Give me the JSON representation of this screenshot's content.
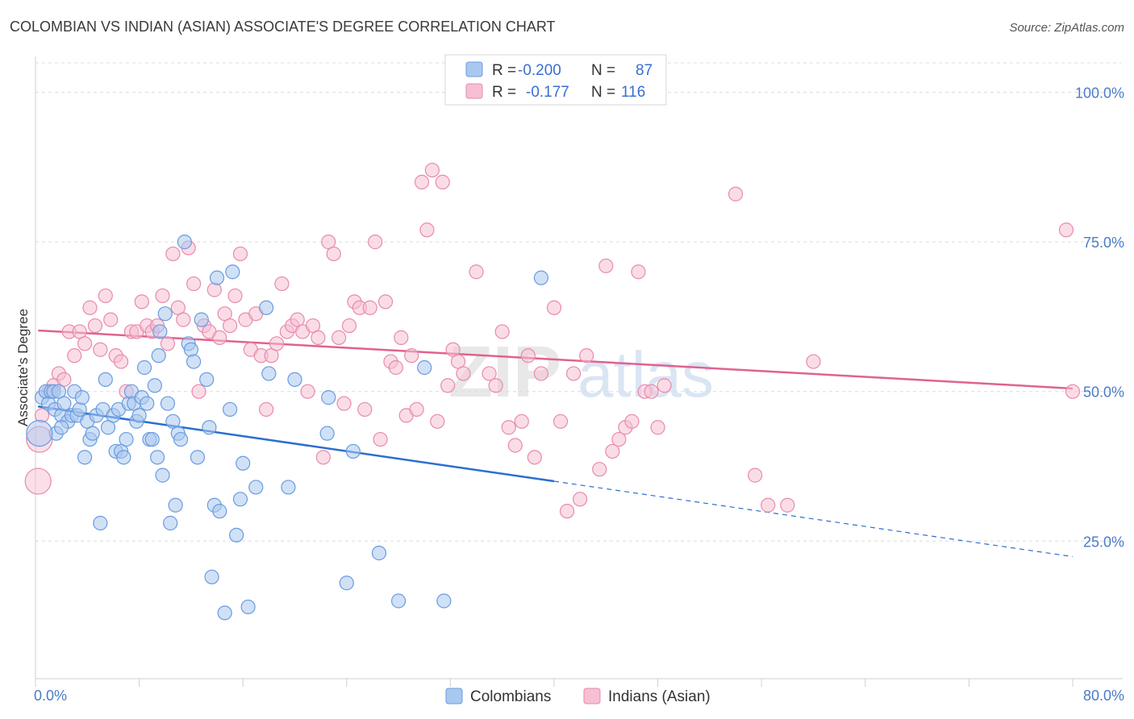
{
  "chart_data": {
    "type": "scatter",
    "title": "COLOMBIAN VS INDIAN (ASIAN) ASSOCIATE'S DEGREE CORRELATION CHART",
    "source": "Source: ZipAtlas.com",
    "ylabel": "Associate's Degree",
    "xlim": [
      0,
      80
    ],
    "ylim": [
      2,
      106
    ],
    "x_tick_labels": [
      "0.0%",
      "80.0%"
    ],
    "y_ticks": [
      25,
      50,
      75,
      100
    ],
    "y_tick_labels": [
      "25.0%",
      "50.0%",
      "75.0%",
      "100.0%"
    ],
    "watermark": "ZIPatlas",
    "legend": {
      "rows": [
        {
          "r_label": "R =",
          "r_value": "-0.200",
          "n_label": "N =",
          "n_value": "87"
        },
        {
          "r_label": "R =",
          "r_value": "-0.177",
          "n_label": "N =",
          "n_value": "116"
        }
      ]
    },
    "bottom_legend": [
      "Colombians",
      "Indians (Asian)"
    ],
    "colors": {
      "colombian_fill": "#a9c8ef",
      "colombian_stroke": "#6a9be0",
      "colombian_line": "#2a6fd1",
      "indian_fill": "#f6bfd3",
      "indian_stroke": "#e88aac",
      "indian_line": "#e0628f"
    },
    "series": [
      {
        "name": "Colombians",
        "trend": {
          "x1": 0.2,
          "y1": 47.5,
          "x2": 40,
          "y2": 35,
          "x3": 80,
          "y3": 22.4
        },
        "points": [
          [
            0.5,
            49
          ],
          [
            0.8,
            50
          ],
          [
            1.0,
            48
          ],
          [
            1.2,
            50
          ],
          [
            1.4,
            50
          ],
          [
            1.5,
            47
          ],
          [
            1.6,
            43
          ],
          [
            1.8,
            50
          ],
          [
            2.0,
            46
          ],
          [
            2.2,
            48
          ],
          [
            2.5,
            45
          ],
          [
            2.8,
            46
          ],
          [
            3.0,
            50
          ],
          [
            3.2,
            46
          ],
          [
            3.4,
            47
          ],
          [
            3.6,
            49
          ],
          [
            3.8,
            39
          ],
          [
            4.0,
            45
          ],
          [
            4.2,
            42
          ],
          [
            4.4,
            43
          ],
          [
            4.7,
            46
          ],
          [
            5.0,
            28
          ],
          [
            5.2,
            47
          ],
          [
            5.4,
            52
          ],
          [
            5.6,
            44
          ],
          [
            6.0,
            46
          ],
          [
            6.2,
            40
          ],
          [
            6.4,
            47
          ],
          [
            6.6,
            40
          ],
          [
            6.8,
            39
          ],
          [
            7.0,
            42
          ],
          [
            7.2,
            48
          ],
          [
            7.4,
            50
          ],
          [
            7.6,
            48
          ],
          [
            7.8,
            45
          ],
          [
            8.0,
            46
          ],
          [
            8.2,
            49
          ],
          [
            8.4,
            54
          ],
          [
            8.6,
            48
          ],
          [
            8.8,
            42
          ],
          [
            9.0,
            42
          ],
          [
            9.2,
            51
          ],
          [
            9.4,
            39
          ],
          [
            9.6,
            60
          ],
          [
            9.8,
            36
          ],
          [
            10.0,
            63
          ],
          [
            10.2,
            48
          ],
          [
            10.4,
            28
          ],
          [
            10.6,
            45
          ],
          [
            10.8,
            31
          ],
          [
            11.0,
            43
          ],
          [
            11.2,
            42
          ],
          [
            11.5,
            75
          ],
          [
            11.8,
            58
          ],
          [
            12.0,
            57
          ],
          [
            12.2,
            55
          ],
          [
            12.5,
            39
          ],
          [
            12.8,
            62
          ],
          [
            13.2,
            52
          ],
          [
            13.4,
            44
          ],
          [
            13.6,
            19
          ],
          [
            13.8,
            31
          ],
          [
            14.0,
            69
          ],
          [
            14.2,
            30
          ],
          [
            14.6,
            13
          ],
          [
            15.0,
            47
          ],
          [
            15.2,
            70
          ],
          [
            15.5,
            26
          ],
          [
            15.8,
            32
          ],
          [
            16.0,
            38
          ],
          [
            16.4,
            14
          ],
          [
            17.8,
            64
          ],
          [
            18.0,
            53
          ],
          [
            17.0,
            34
          ],
          [
            19.5,
            34
          ],
          [
            20.0,
            52
          ],
          [
            22.5,
            43
          ],
          [
            22.6,
            49
          ],
          [
            24.0,
            18
          ],
          [
            24.5,
            40
          ],
          [
            26.5,
            23
          ],
          [
            28.0,
            15
          ],
          [
            30.0,
            54
          ],
          [
            31.5,
            15
          ],
          [
            39.0,
            69
          ],
          [
            9.5,
            56
          ],
          [
            2.0,
            44
          ]
        ],
        "big_points": [
          [
            0.3,
            43
          ]
        ]
      },
      {
        "name": "Indians (Asian)",
        "trend": {
          "x1": 0.2,
          "y1": 60.2,
          "x2": 80,
          "y2": 50.5
        },
        "points": [
          [
            0.5,
            46
          ],
          [
            1.0,
            50
          ],
          [
            1.4,
            51
          ],
          [
            1.8,
            53
          ],
          [
            2.2,
            52
          ],
          [
            2.6,
            60
          ],
          [
            3.0,
            56
          ],
          [
            3.4,
            60
          ],
          [
            3.8,
            58
          ],
          [
            4.2,
            64
          ],
          [
            4.6,
            61
          ],
          [
            5.0,
            57
          ],
          [
            5.4,
            66
          ],
          [
            5.8,
            62
          ],
          [
            6.2,
            56
          ],
          [
            6.6,
            55
          ],
          [
            7.0,
            50
          ],
          [
            7.4,
            60
          ],
          [
            7.8,
            60
          ],
          [
            8.2,
            65
          ],
          [
            8.6,
            61
          ],
          [
            9.0,
            60
          ],
          [
            9.4,
            61
          ],
          [
            9.8,
            66
          ],
          [
            10.2,
            58
          ],
          [
            10.6,
            73
          ],
          [
            11.0,
            64
          ],
          [
            11.4,
            62
          ],
          [
            11.8,
            74
          ],
          [
            12.2,
            68
          ],
          [
            12.6,
            50
          ],
          [
            13.0,
            61
          ],
          [
            13.4,
            60
          ],
          [
            13.8,
            67
          ],
          [
            14.2,
            59
          ],
          [
            14.6,
            63
          ],
          [
            15.0,
            61
          ],
          [
            15.4,
            66
          ],
          [
            15.8,
            73
          ],
          [
            16.2,
            62
          ],
          [
            16.6,
            57
          ],
          [
            17.0,
            63
          ],
          [
            17.4,
            56
          ],
          [
            17.8,
            47
          ],
          [
            18.2,
            56
          ],
          [
            18.6,
            58
          ],
          [
            19.0,
            68
          ],
          [
            19.4,
            60
          ],
          [
            19.8,
            61
          ],
          [
            20.2,
            62
          ],
          [
            20.6,
            60
          ],
          [
            21.0,
            50
          ],
          [
            21.4,
            61
          ],
          [
            21.8,
            59
          ],
          [
            22.2,
            39
          ],
          [
            22.6,
            75
          ],
          [
            23.0,
            73
          ],
          [
            23.4,
            59
          ],
          [
            23.8,
            48
          ],
          [
            24.2,
            61
          ],
          [
            24.6,
            65
          ],
          [
            25.0,
            64
          ],
          [
            25.4,
            47
          ],
          [
            25.8,
            64
          ],
          [
            26.2,
            75
          ],
          [
            26.6,
            42
          ],
          [
            27.0,
            65
          ],
          [
            27.4,
            55
          ],
          [
            27.8,
            54
          ],
          [
            28.2,
            59
          ],
          [
            28.6,
            46
          ],
          [
            29.0,
            56
          ],
          [
            29.4,
            47
          ],
          [
            29.8,
            85
          ],
          [
            30.2,
            77
          ],
          [
            30.6,
            87
          ],
          [
            31.0,
            45
          ],
          [
            31.4,
            85
          ],
          [
            31.8,
            51
          ],
          [
            32.2,
            57
          ],
          [
            32.6,
            55
          ],
          [
            33.0,
            53
          ],
          [
            34.0,
            70
          ],
          [
            35.0,
            53
          ],
          [
            35.5,
            51
          ],
          [
            36.0,
            60
          ],
          [
            36.5,
            44
          ],
          [
            37.0,
            41
          ],
          [
            37.5,
            45
          ],
          [
            38.0,
            56
          ],
          [
            38.5,
            39
          ],
          [
            39.0,
            53
          ],
          [
            40.0,
            64
          ],
          [
            40.5,
            45
          ],
          [
            41.0,
            30
          ],
          [
            41.5,
            53
          ],
          [
            42.0,
            32
          ],
          [
            42.5,
            56
          ],
          [
            43.5,
            37
          ],
          [
            44.0,
            71
          ],
          [
            44.5,
            40
          ],
          [
            45.0,
            42
          ],
          [
            45.5,
            44
          ],
          [
            46.0,
            45
          ],
          [
            46.5,
            70
          ],
          [
            47.0,
            50
          ],
          [
            47.5,
            50
          ],
          [
            48.0,
            44
          ],
          [
            48.5,
            51
          ],
          [
            54.0,
            83
          ],
          [
            55.5,
            36
          ],
          [
            56.5,
            31
          ],
          [
            58.0,
            31
          ],
          [
            60.0,
            55
          ],
          [
            79.5,
            77
          ],
          [
            80.0,
            50
          ]
        ],
        "big_points": [
          [
            0.3,
            42
          ],
          [
            0.2,
            35
          ]
        ]
      }
    ]
  }
}
